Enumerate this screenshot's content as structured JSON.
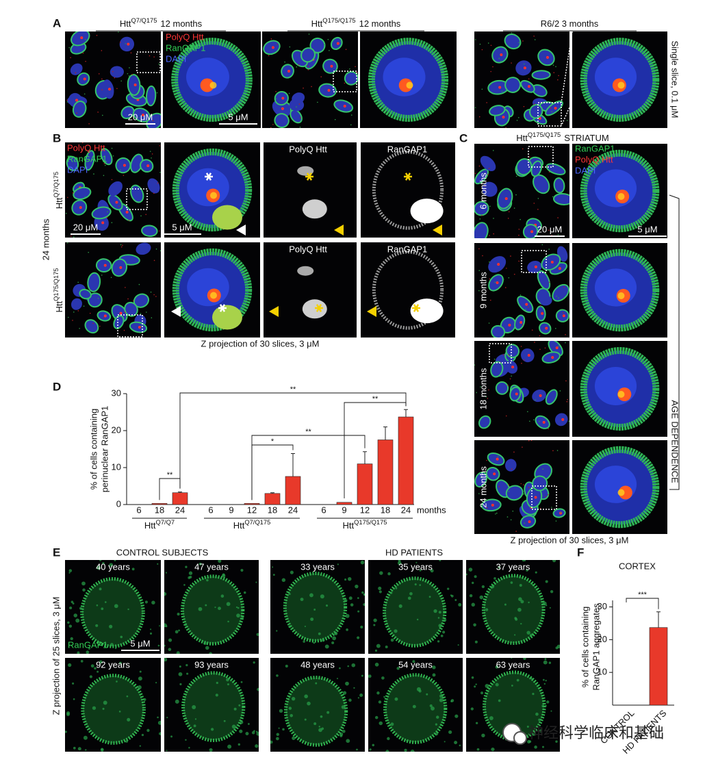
{
  "panel_a": {
    "letter": "A",
    "groups": [
      {
        "name": "Htt",
        "sup": "Q7/Q175",
        "suffix": "12 months"
      },
      {
        "name": "Htt",
        "sup": "Q175/Q175",
        "suffix": "12 months"
      },
      {
        "name": "R6/2 3 months"
      }
    ],
    "legend": [
      "PolyQ Htt",
      "RanGAP1",
      "DAPI"
    ],
    "scale_bars": [
      "20 μM",
      "5 μM"
    ],
    "side_label": "Single slice, 0.1 μM"
  },
  "panel_b": {
    "letter": "B",
    "legend": [
      "PolyQ Htt",
      "RanGAP1",
      "DAPI"
    ],
    "age": "24 months",
    "genotypes": [
      {
        "name": "Htt",
        "sup": "Q7/Q175"
      },
      {
        "name": "Htt",
        "sup": "Q175/Q175"
      }
    ],
    "channel_titles": [
      "PolyQ Htt",
      "RanGAP1"
    ],
    "scale_bars": [
      "20 μM",
      "5 μM"
    ],
    "caption": "Z projection of 30 slices, 3 μM"
  },
  "panel_c": {
    "letter": "C",
    "title": {
      "name": "Htt",
      "sup": "Q175/Q175",
      "suffix": "STRIATUM"
    },
    "legend": [
      "RanGAP1",
      "PolyQ Htt",
      "DAPI"
    ],
    "ages": [
      "6 months",
      "9 months",
      "18 months",
      "24 months"
    ],
    "scale_bars": [
      "20 μM",
      "5 μM"
    ],
    "side_label": "AGE DEPENDENCE",
    "caption": "Z projection of 30 slices, 3 μM"
  },
  "chart_data": [
    {
      "type": "bar",
      "panel": "D",
      "ylabel": [
        "% of cells containing",
        "perinuclear RanGAP1"
      ],
      "xlabel": "months",
      "ylim": [
        0,
        30
      ],
      "yticks": [
        0,
        10,
        20,
        30
      ],
      "color": "#e8392a",
      "groups": [
        {
          "name": "Htt",
          "sup": "Q7/Q7",
          "categories": [
            "6",
            "18",
            "24"
          ],
          "values": [
            0,
            0.3,
            3.2
          ],
          "errors": [
            null,
            null,
            0.2
          ]
        },
        {
          "name": "Htt",
          "sup": "Q7/Q175",
          "categories": [
            "6",
            "9",
            "12",
            "18",
            "24"
          ],
          "values": [
            0,
            0,
            0.3,
            3,
            7.6
          ],
          "errors": [
            null,
            null,
            null,
            0.2,
            6.2
          ]
        },
        {
          "name": "Htt",
          "sup": "Q175/Q175",
          "categories": [
            "6",
            "9",
            "12",
            "18",
            "24"
          ],
          "values": [
            0,
            0.6,
            11,
            17.5,
            23.7
          ],
          "errors": [
            null,
            null,
            3.3,
            3.5,
            2
          ]
        }
      ],
      "significance": [
        "**",
        "**",
        "*",
        "**",
        "**"
      ]
    },
    {
      "type": "bar",
      "panel": "F",
      "title": "CORTEX",
      "ylabel": [
        "% of cells containing",
        "RanGAP1 aggregates"
      ],
      "categories": [
        "CONTROL",
        "HD PATIENTS"
      ],
      "values": [
        0,
        23.7
      ],
      "errors": [
        null,
        4.8
      ],
      "ylim": [
        0,
        32
      ],
      "yticks": [
        10,
        20,
        30
      ],
      "color": "#e8392a",
      "significance": [
        "***"
      ]
    }
  ],
  "panel_e": {
    "letter": "E",
    "control_title": "CONTROL SUBJECTS",
    "hd_title": "HD PATIENTS",
    "control_ages": [
      "40 years",
      "47 years",
      "92 years",
      "93 years"
    ],
    "hd_ages": [
      "33 years",
      "35 years",
      "37 years",
      "48 years",
      "54 years",
      "63 years"
    ],
    "legend": "RanGAP1",
    "scale_bar": "5 μM",
    "side_label": "Z projection of 25 slices, 3 μM"
  },
  "watermark": "神经科学临床和基础"
}
